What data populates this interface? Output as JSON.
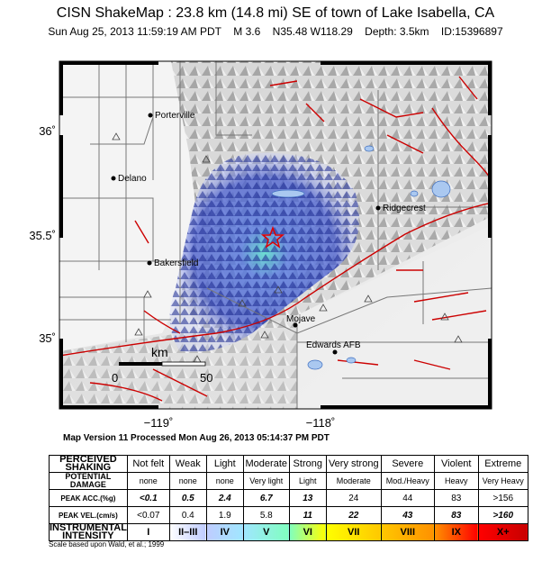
{
  "header": {
    "title": "CISN ShakeMap : 23.8 km (14.8 mi) SE of town of Lake Isabella, CA",
    "date": "Sun Aug 25, 2013 11:59:19 AM PDT",
    "magnitude": "M 3.6",
    "location": "N35.48 W118.29",
    "depth": "Depth: 3.5km",
    "event_id": "ID:15396897"
  },
  "map": {
    "lat_labels": [
      "36˚",
      "35.5˚",
      "35˚"
    ],
    "lon_labels": [
      "−119˚",
      "−118˚"
    ],
    "scale_bar": {
      "unit": "km",
      "start": "0",
      "end": "50"
    },
    "cities": [
      "Porterville",
      "Delano",
      "Bakersfield",
      "Ridgecrest",
      "Mojave",
      "Edwards AFB"
    ],
    "epicenter_color": "#e00000",
    "fault_color": "#cc0000"
  },
  "version_line": "Map Version 11 Processed Mon Aug 26, 2013 05:14:37 PM PDT",
  "scale_table": {
    "rows": {
      "shaking": "PERCEIVED SHAKING",
      "damage": "POTENTIAL DAMAGE",
      "acc": "PEAK ACC.(%g)",
      "vel": "PEAK VEL.(cm/s)",
      "intensity": "INSTRUMENTAL INTENSITY"
    },
    "shaking": [
      "Not felt",
      "Weak",
      "Light",
      "Moderate",
      "Strong",
      "Very strong",
      "Severe",
      "Violent",
      "Extreme"
    ],
    "damage": [
      "none",
      "none",
      "none",
      "Very light",
      "Light",
      "Moderate",
      "Mod./Heavy",
      "Heavy",
      "Very Heavy"
    ],
    "acc": [
      "<0.1",
      "0.5",
      "2.4",
      "6.7",
      "13",
      "24",
      "44",
      "83",
      ">156"
    ],
    "vel": [
      "<0.07",
      "0.4",
      "1.9",
      "5.8",
      "11",
      "22",
      "43",
      "83",
      ">160"
    ],
    "intensity": [
      "I",
      "II–III",
      "IV",
      "V",
      "VI",
      "VII",
      "VIII",
      "IX",
      "X+"
    ],
    "intensity_colors": [
      "#ffffff",
      "#bfccff",
      "#a0e6ff",
      "#80ffbf",
      "#ffff00",
      "#ffc800",
      "#ff9100",
      "#ff0000",
      "#c80000"
    ]
  },
  "footnote": "Scale based upon Wald, et al.; 1999"
}
